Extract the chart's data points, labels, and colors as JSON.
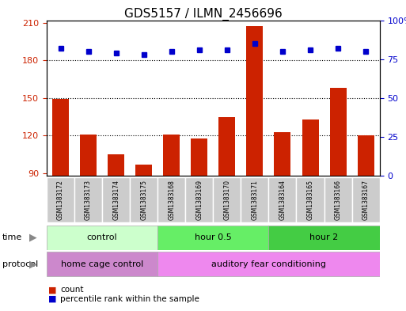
{
  "title": "GDS5157 / ILMN_2456696",
  "samples": [
    "GSM1383172",
    "GSM1383173",
    "GSM1383174",
    "GSM1383175",
    "GSM1383168",
    "GSM1383169",
    "GSM1383170",
    "GSM1383171",
    "GSM1383164",
    "GSM1383165",
    "GSM1383166",
    "GSM1383167"
  ],
  "counts": [
    149,
    121,
    105,
    97,
    121,
    118,
    135,
    207,
    123,
    133,
    158,
    120
  ],
  "percentiles": [
    82,
    80,
    79,
    78,
    80,
    81,
    81,
    85,
    80,
    81,
    82,
    80
  ],
  "ylim_left": [
    88,
    212
  ],
  "ylim_right": [
    0,
    100
  ],
  "yticks_left": [
    90,
    120,
    150,
    180,
    210
  ],
  "yticks_right": [
    0,
    25,
    50,
    75,
    100
  ],
  "bar_color": "#cc2200",
  "dot_color": "#0000cc",
  "time_groups": [
    {
      "label": "control",
      "start": 0,
      "end": 3,
      "color": "#ccffcc"
    },
    {
      "label": "hour 0.5",
      "start": 4,
      "end": 7,
      "color": "#66ee66"
    },
    {
      "label": "hour 2",
      "start": 8,
      "end": 11,
      "color": "#44cc44"
    }
  ],
  "protocol_groups": [
    {
      "label": "home cage control",
      "start": 0,
      "end": 3,
      "color": "#cc88cc"
    },
    {
      "label": "auditory fear conditioning",
      "start": 4,
      "end": 11,
      "color": "#ee88ee"
    }
  ],
  "legend_items": [
    {
      "label": "count",
      "color": "#cc2200"
    },
    {
      "label": "percentile rank within the sample",
      "color": "#0000cc"
    }
  ],
  "bg_color": "#ffffff",
  "tick_label_color_left": "#cc2200",
  "tick_label_color_right": "#0000cc",
  "sample_box_color": "#cccccc",
  "label_arrow_color": "#888888"
}
